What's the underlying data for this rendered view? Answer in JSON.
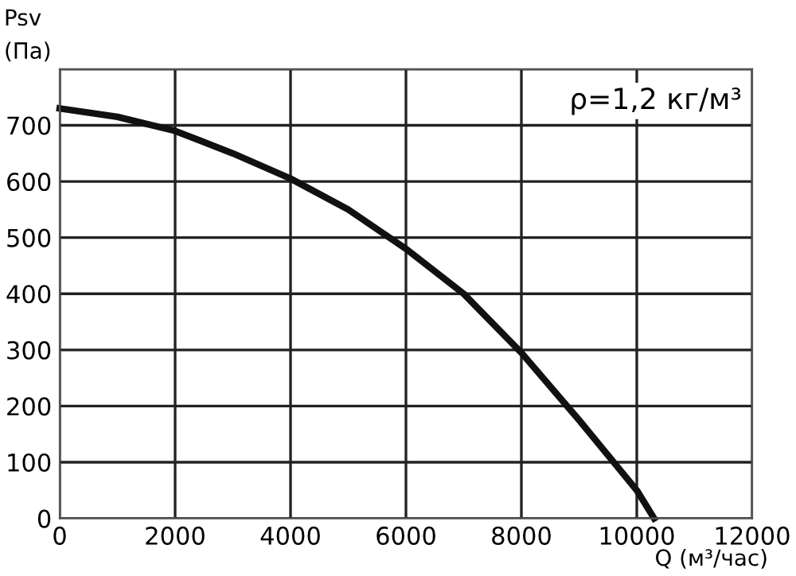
{
  "chart_data": {
    "type": "line",
    "ylabel": "Psv\n(Па)",
    "xlabel": "Q (м³/час)",
    "annotations": [
      "ρ=1,2 кг/м³"
    ],
    "x": [
      0,
      1000,
      2000,
      3000,
      4000,
      5000,
      6000,
      7000,
      8000,
      9000,
      10000,
      10300
    ],
    "series": [
      {
        "color": "#111111",
        "values": [
          730,
          715,
          690,
          650,
          605,
          550,
          480,
          400,
          295,
          175,
          50,
          0
        ]
      }
    ],
    "xlim": [
      0,
      12000
    ],
    "xticks": [
      0,
      2000,
      4000,
      6000,
      8000,
      10000,
      12000
    ],
    "ylim": [
      0,
      800
    ],
    "yticks": [
      0,
      100,
      200,
      300,
      400,
      500,
      600,
      700,
      {
        "value": 800,
        "label": null
      }
    ],
    "grid": true,
    "legend": false,
    "marker": "none",
    "line_style": "solid"
  }
}
